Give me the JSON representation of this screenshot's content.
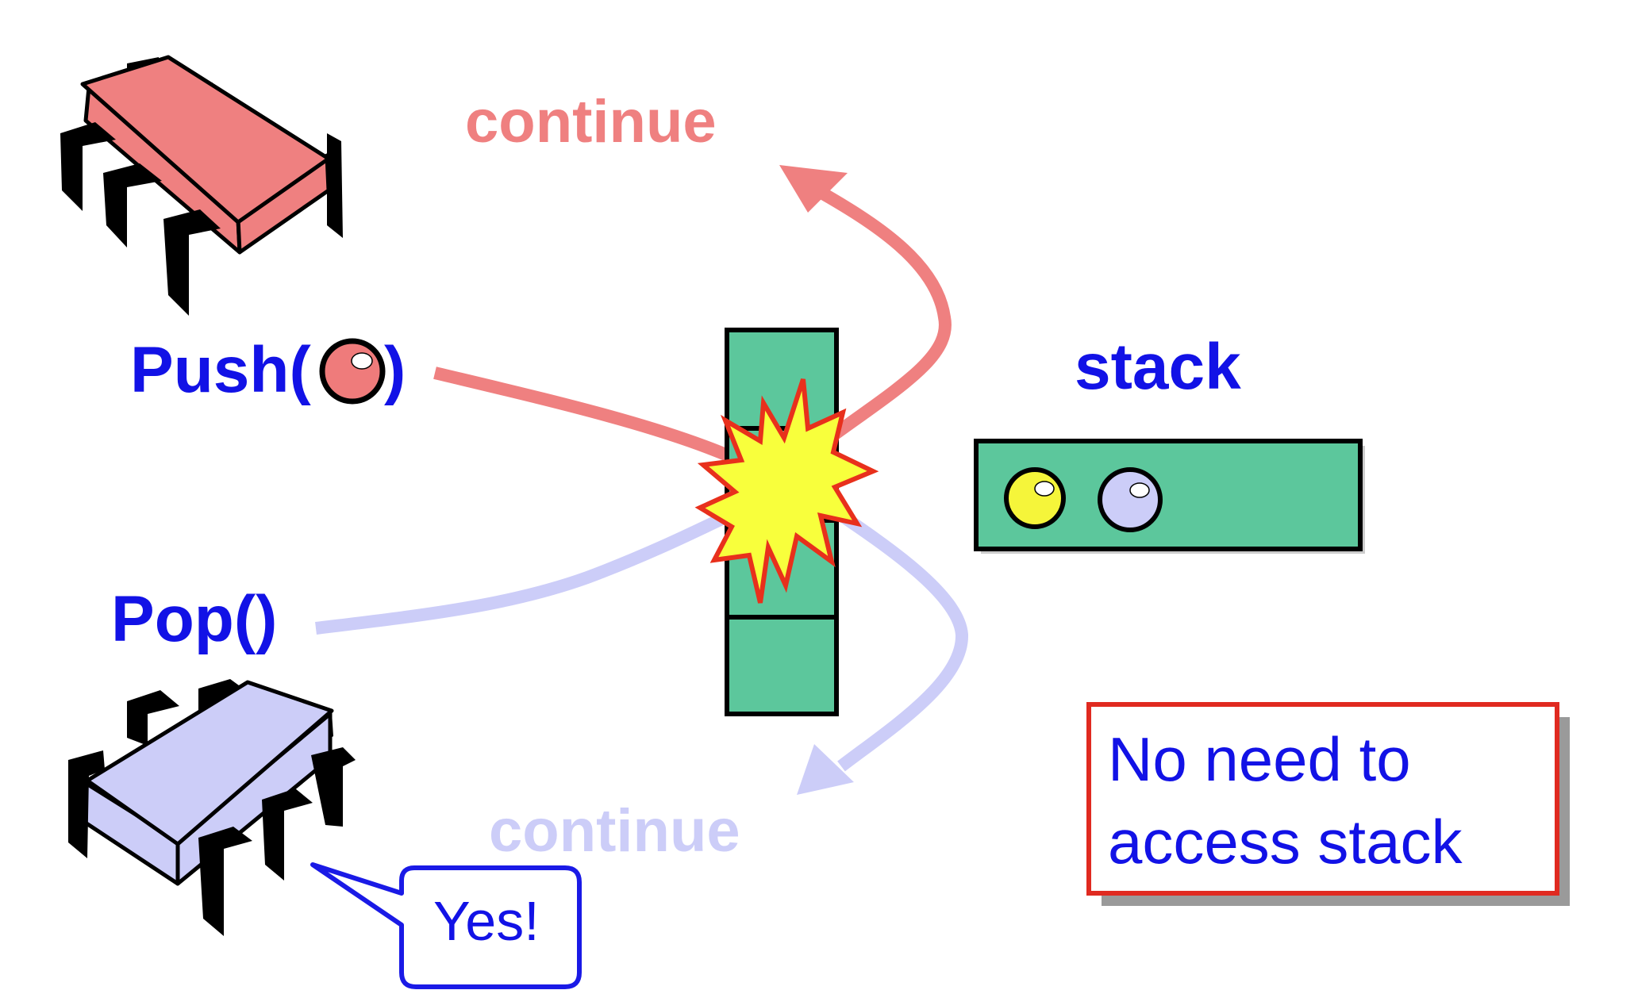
{
  "labels": {
    "continue_top": "continue",
    "continue_bottom": "continue",
    "push": "Push(",
    "push_close": ")",
    "pop": "Pop()",
    "stack": "stack",
    "speech": "Yes!",
    "note_line1": "No need to",
    "note_line2": "access stack"
  },
  "colors": {
    "pink": "#ef8080",
    "lavender": "#cccdf8",
    "blue_text": "#1212e6",
    "green": "#5cc79c",
    "yellow_ball": "#f5f53a",
    "lavender_ball": "#cccdf8",
    "pink_ball": "#ef7b7b",
    "burst_fill": "#f8ff3c",
    "burst_stroke": "#e8301c",
    "note_border": "#e02a20",
    "speech_border": "#1a1ae6"
  },
  "icons": {
    "push_chip": "pink-chip-icon",
    "pop_chip": "lavender-chip-icon",
    "collision": "collision-burst-icon"
  },
  "stack": {
    "items": [
      "yellow",
      "lavender"
    ]
  }
}
